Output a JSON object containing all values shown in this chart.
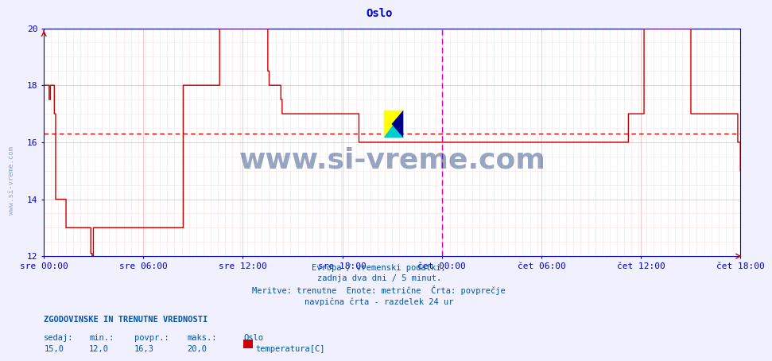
{
  "title": "Oslo",
  "title_color": "#0000cc",
  "bg_color": "#f0f0ff",
  "plot_bg_color": "#ffffff",
  "grid_color": "#ffcccc",
  "avg_line_color": "#cc0000",
  "avg_value": 16.3,
  "y_min": 12,
  "y_max": 20,
  "y_ticks": [
    12,
    14,
    16,
    18,
    20
  ],
  "x_labels": [
    "sre 00:00",
    "sre 06:00",
    "sre 12:00",
    "sre 18:00",
    "čet 00:00",
    "čet 06:00",
    "čet 12:00",
    "čet 18:00"
  ],
  "line_color": "#cc0000",
  "axis_color": "#0000cc",
  "tick_color": "#0000cc",
  "footer_color": "#0055aa",
  "footer_lines": [
    "Evropa / vremenski podatki,",
    "zadnja dva dni / 5 minut.",
    "Meritve: trenutne  Enote: metrične  Črta: povprečje",
    "navpična črta - razdelek 24 ur"
  ],
  "bottom_label_bold": "ZGODOVINSKE IN TRENUTNE VREDNOSTI",
  "bottom_labels": [
    "sedaj:",
    "min.:",
    "povpr.:",
    "maks.:"
  ],
  "bottom_values": [
    "15,0",
    "12,0",
    "16,3",
    "20,0"
  ],
  "bottom_series_label": "Oslo",
  "bottom_series_name": "temperatura[C]",
  "bottom_series_color": "#cc0000",
  "watermark": "www.si-vreme.com",
  "watermark_color": "#1a3a7a",
  "dashed_line_color": "#cc00cc",
  "data_y": [
    18,
    18,
    18,
    18,
    17.5,
    18,
    18,
    18,
    17,
    14,
    14,
    14,
    14,
    14,
    14,
    14,
    14,
    13,
    13,
    13,
    13,
    13,
    13,
    13,
    13,
    13,
    13,
    13,
    13,
    13,
    13,
    13,
    13,
    13,
    13,
    13,
    12.1,
    12,
    13,
    13,
    13,
    13,
    13,
    13,
    13,
    13,
    13,
    13,
    13,
    13,
    13,
    13,
    13,
    13,
    13,
    13,
    13,
    13,
    13,
    13,
    13,
    13,
    13,
    13,
    13,
    13,
    13,
    13,
    13,
    13,
    13,
    13,
    13,
    13,
    13,
    13,
    13,
    13,
    13,
    13,
    13,
    13,
    13,
    13,
    13,
    13,
    13,
    13,
    13,
    13,
    13,
    13,
    13,
    13,
    13,
    13,
    13,
    13,
    13,
    13,
    13,
    13,
    13,
    13,
    13,
    13,
    13,
    18,
    18,
    18,
    18,
    18,
    18,
    18,
    18,
    18,
    18,
    18,
    18,
    18,
    18,
    18,
    18,
    18,
    18,
    18,
    18,
    18,
    18,
    18,
    18,
    18,
    18,
    18,
    18,
    20,
    20,
    20,
    20,
    20,
    20,
    20,
    20,
    20,
    20,
    20,
    20,
    20,
    20,
    20,
    20,
    20,
    20,
    20,
    20,
    20,
    20,
    20,
    20,
    20,
    20,
    20,
    20,
    20,
    20,
    20,
    20,
    20,
    20,
    20,
    20,
    20,
    18.5,
    18,
    18,
    18,
    18,
    18,
    18,
    18,
    18,
    18,
    17.5,
    17,
    17,
    17,
    17,
    17,
    17,
    17,
    17,
    17,
    17,
    17,
    17,
    17,
    17,
    17,
    17,
    17,
    17,
    17,
    17,
    17,
    17,
    17,
    17,
    17,
    17,
    17,
    17,
    17,
    17,
    17,
    17,
    17,
    17,
    17,
    17,
    17,
    17,
    17,
    17,
    17,
    17,
    17,
    17,
    17,
    17,
    17,
    17,
    17,
    17,
    17,
    17,
    17,
    17,
    17,
    17,
    17,
    17,
    17,
    16,
    16,
    16,
    16,
    16,
    16,
    16,
    16,
    16,
    16,
    16,
    16,
    16,
    16,
    16,
    16,
    16,
    16,
    16,
    16,
    16,
    16,
    16,
    16,
    16,
    16,
    16,
    16,
    16,
    16,
    16,
    16,
    16,
    16,
    16,
    16,
    16,
    16,
    16,
    16,
    16,
    16,
    16,
    16,
    16,
    16,
    16,
    16,
    16,
    16,
    16,
    16,
    16,
    16,
    16,
    16,
    16,
    16,
    16,
    16,
    16,
    16,
    16,
    16,
    16,
    16,
    16,
    16,
    16,
    16,
    16,
    16,
    16,
    16,
    16,
    16,
    16,
    16,
    16,
    16,
    16,
    16,
    16,
    16,
    16,
    16,
    16,
    16,
    16,
    16,
    16,
    16,
    16,
    16,
    16,
    16,
    16,
    16,
    16,
    16,
    16,
    16,
    16,
    16,
    16,
    16,
    16,
    16,
    16,
    16,
    16,
    16,
    16,
    16,
    16,
    16,
    16,
    16,
    16,
    16,
    16,
    16,
    16,
    16,
    16,
    16,
    16,
    16,
    16,
    16,
    16,
    16,
    16,
    16,
    16,
    16,
    16,
    16,
    16,
    16,
    16,
    16,
    16,
    16,
    16,
    16,
    16,
    16,
    16,
    16,
    16,
    16,
    16,
    16,
    16,
    16,
    16,
    16,
    16,
    16,
    16,
    16,
    16,
    16,
    16,
    16,
    16,
    16,
    16,
    16,
    16,
    16,
    16,
    16,
    16,
    16,
    16,
    16,
    16,
    16,
    16,
    16,
    16,
    16,
    16,
    16,
    16,
    16,
    16,
    16,
    16,
    16,
    16,
    16,
    16,
    16,
    16,
    16,
    16,
    16,
    16,
    16,
    16,
    16,
    16,
    16,
    16,
    17,
    17,
    17,
    17,
    17,
    17,
    17,
    17,
    17,
    17,
    17,
    17,
    20,
    20,
    20,
    20,
    20,
    20,
    20,
    20,
    20,
    20,
    20,
    20,
    20,
    20,
    20,
    20,
    20,
    20,
    20,
    20,
    20,
    20,
    20,
    20,
    20,
    20,
    20,
    20,
    20,
    20,
    20,
    20,
    20,
    20,
    20,
    20,
    17,
    17,
    17,
    17,
    17,
    17,
    17,
    17,
    17,
    17,
    17,
    17,
    17,
    17,
    17,
    17,
    17,
    17,
    17,
    17,
    17,
    17,
    17,
    17,
    17,
    17,
    17,
    17,
    17,
    17,
    17,
    17,
    17,
    17,
    17,
    17,
    16,
    16,
    15
  ]
}
